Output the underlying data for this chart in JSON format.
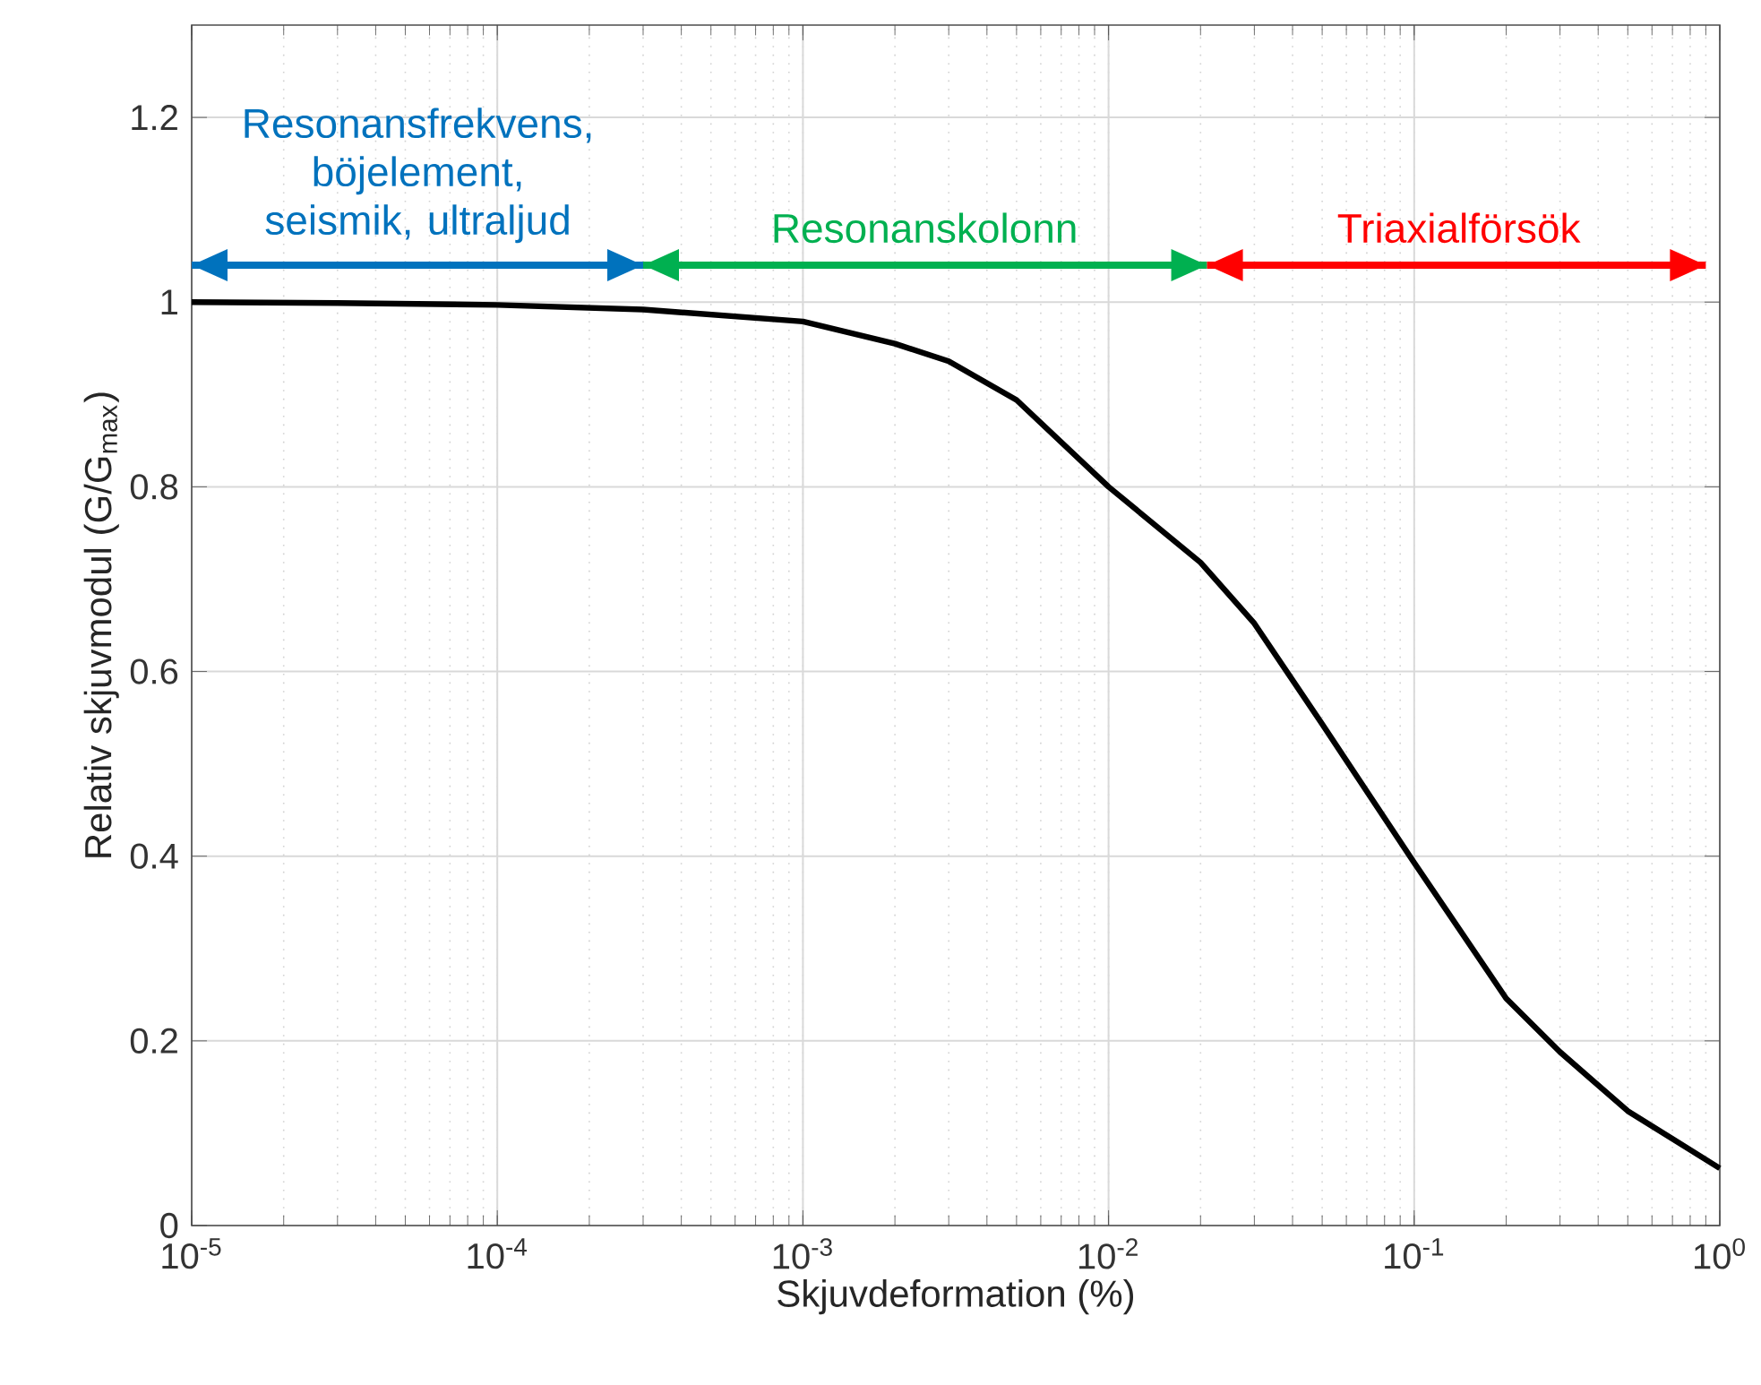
{
  "chart_data": {
    "type": "line",
    "xlabel": "Skjuvdeformation (%)",
    "ylabel": "Relativ skjuvmodul (G/G$_{max}$)",
    "log": "x",
    "grid": true,
    "xlim": [
      1e-05,
      1
    ],
    "ylim": [
      0,
      1.3
    ],
    "xticks": [
      {
        "value": 1e-05,
        "label": "10$^{-5}$"
      },
      {
        "value": 0.0001,
        "label": "10$^{-4}$"
      },
      {
        "value": 0.001,
        "label": "10$^{-3}$"
      },
      {
        "value": 0.01,
        "label": "10$^{-2}$"
      },
      {
        "value": 0.1,
        "label": "10$^{-1}$"
      },
      {
        "value": 1,
        "label": "10$^{0}$"
      }
    ],
    "yticks": [
      0,
      0.2,
      0.4,
      0.6,
      0.8,
      1,
      1.2
    ],
    "x": [
      1e-05,
      3e-05,
      0.0001,
      0.0003,
      0.001,
      0.002,
      0.003,
      0.005,
      0.01,
      0.02,
      0.03,
      0.05,
      0.1,
      0.2,
      0.3,
      0.5,
      1
    ],
    "series": [
      {
        "color": "#000000",
        "values": [
          1.0,
          0.999,
          0.997,
          0.992,
          0.979,
          0.955,
          0.936,
          0.894,
          0.8,
          0.718,
          0.652,
          0.543,
          0.393,
          0.246,
          0.188,
          0.124,
          0.062
        ]
      },
      {
        "color": "#0072bd",
        "x": [
          1e-05,
          0.0003
        ],
        "values": [
          1.04,
          1.04
        ]
      },
      {
        "color": "#00b050",
        "x": [
          0.0003,
          0.021
        ],
        "values": [
          1.04,
          1.04
        ]
      },
      {
        "color": "#ff0000",
        "x": [
          0.021,
          0.9
        ],
        "values": [
          1.04,
          1.04
        ]
      }
    ],
    "annotations": [
      {
        "text": "Resonansfrekvens, böjelement, seismik, ultraljud",
        "x": 5.5e-05,
        "y": 1.04
      },
      {
        "text": "Resonanskolonn",
        "x": 0.0025,
        "y": 1.04
      },
      {
        "text": "Triaxialförsök",
        "x": 0.14,
        "y": 1.04
      }
    ]
  }
}
